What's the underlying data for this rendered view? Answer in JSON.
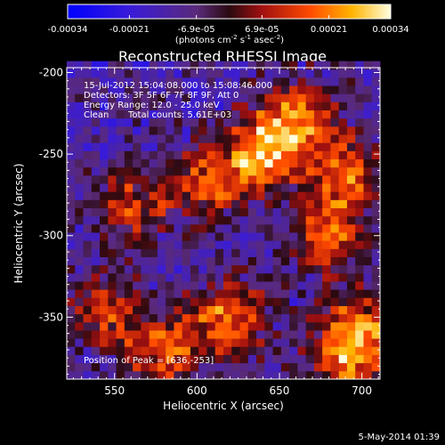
{
  "colorbar": {
    "ticks": [
      "-0.00034",
      "-0.00021",
      "-6.9e-05",
      "6.9e-05",
      "0.00021",
      "0.00034"
    ],
    "units_main": "(photons cm",
    "units_exp1": "-2",
    "units_mid": " s",
    "units_exp2": "-1",
    "units_asec": " asec",
    "units_exp3": "-2",
    "units_close": ")",
    "range": [
      -0.00034,
      0.00034
    ],
    "colormap": "blue-purple-red-orange-yellow-white"
  },
  "chart_data": {
    "type": "heatmap",
    "title": "Reconstructed RHESSI Image",
    "xlabel": "Heliocentric X (arcsec)",
    "ylabel": "Heliocentric Y (arcsec)",
    "xlim": [
      521,
      711
    ],
    "ylim": [
      -388,
      -197
    ],
    "xticks": [
      550,
      600,
      650,
      700
    ],
    "yticks": [
      -200,
      -250,
      -300,
      -350
    ],
    "xtick_labels": [
      "550",
      "600",
      "650",
      "700"
    ],
    "ytick_labels": [
      "-200",
      "-250",
      "-300",
      "-350"
    ],
    "annotations": [
      "15-Jul-2012 15:04:08.000 to 15:08:46.000",
      "Detectors: 3F 5F 6F 7F 8F 9F, Att 0",
      "Energy Range: 12.0 - 25.0 keV",
      "Clean",
      "Total counts: 5.61E+03"
    ],
    "peak_label": "Position of Peak = [636,-253]",
    "peak": [
      636,
      -253
    ],
    "bright_regions": [
      {
        "x": 640,
        "y": -250,
        "level": 1.0
      },
      {
        "x": 660,
        "y": -228,
        "level": 0.8
      },
      {
        "x": 690,
        "y": -262,
        "level": 0.75
      },
      {
        "x": 680,
        "y": -300,
        "level": 0.7
      },
      {
        "x": 605,
        "y": -268,
        "level": 0.65
      },
      {
        "x": 560,
        "y": -283,
        "level": 0.6
      },
      {
        "x": 620,
        "y": -350,
        "level": 0.85
      },
      {
        "x": 580,
        "y": -370,
        "level": 0.8
      },
      {
        "x": 545,
        "y": -345,
        "level": 0.6
      },
      {
        "x": 700,
        "y": -355,
        "level": 0.75
      },
      {
        "x": 690,
        "y": -380,
        "level": 0.7
      }
    ]
  },
  "footer": {
    "date": "5-May-2014 01:39"
  }
}
